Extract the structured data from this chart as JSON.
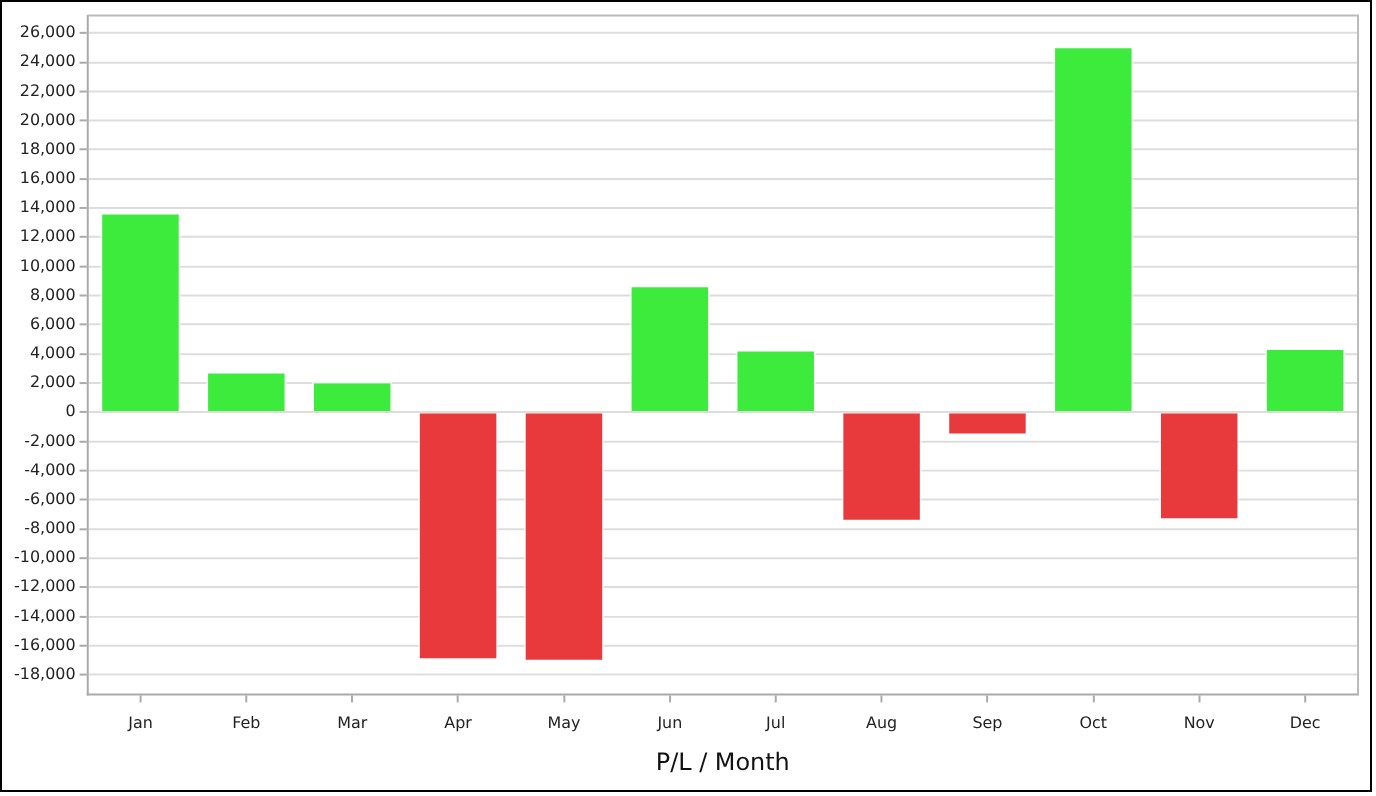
{
  "chart_data": {
    "type": "bar",
    "xlabel": "P/L / Month",
    "categories": [
      "Jan",
      "Feb",
      "Mar",
      "Apr",
      "May",
      "Jun",
      "Jul",
      "Aug",
      "Sep",
      "Oct",
      "Nov",
      "Dec"
    ],
    "values": [
      13700,
      2800,
      2100,
      -17000,
      -17100,
      8700,
      4300,
      -7500,
      -1600,
      25100,
      -7400,
      4400
    ],
    "colors": [
      "#3deb3d",
      "#3deb3d",
      "#3deb3d",
      "#e8393d",
      "#e8393d",
      "#3deb3d",
      "#3deb3d",
      "#e8393d",
      "#e8393d",
      "#3deb3d",
      "#e8393d",
      "#3deb3d"
    ],
    "ylim": [
      -19350,
      27200
    ],
    "yticks": [
      {
        "value": -18000,
        "label": "-18,000"
      },
      {
        "value": -16000,
        "label": "-16,000"
      },
      {
        "value": -14000,
        "label": "-14,000"
      },
      {
        "value": -12000,
        "label": "-12,000"
      },
      {
        "value": -10000,
        "label": "-10,000"
      },
      {
        "value": -8000,
        "label": "-8,000"
      },
      {
        "value": -6000,
        "label": "-6,000"
      },
      {
        "value": -4000,
        "label": "-4,000"
      },
      {
        "value": -2000,
        "label": "-2,000"
      },
      0,
      {
        "value": 2000,
        "label": "2,000"
      },
      {
        "value": 4000,
        "label": "4,000"
      },
      {
        "value": 6000,
        "label": "6,000"
      },
      {
        "value": 8000,
        "label": "8,000"
      },
      {
        "value": 10000,
        "label": "10,000"
      },
      {
        "value": 12000,
        "label": "12,000"
      },
      {
        "value": 14000,
        "label": "14,000"
      },
      {
        "value": 16000,
        "label": "16,000"
      },
      {
        "value": 18000,
        "label": "18,000"
      },
      {
        "value": 20000,
        "label": "20,000"
      },
      {
        "value": 22000,
        "label": "22,000"
      },
      {
        "value": 24000,
        "label": "24,000"
      },
      {
        "value": 26000,
        "label": "26,000"
      }
    ],
    "grid": "y"
  }
}
